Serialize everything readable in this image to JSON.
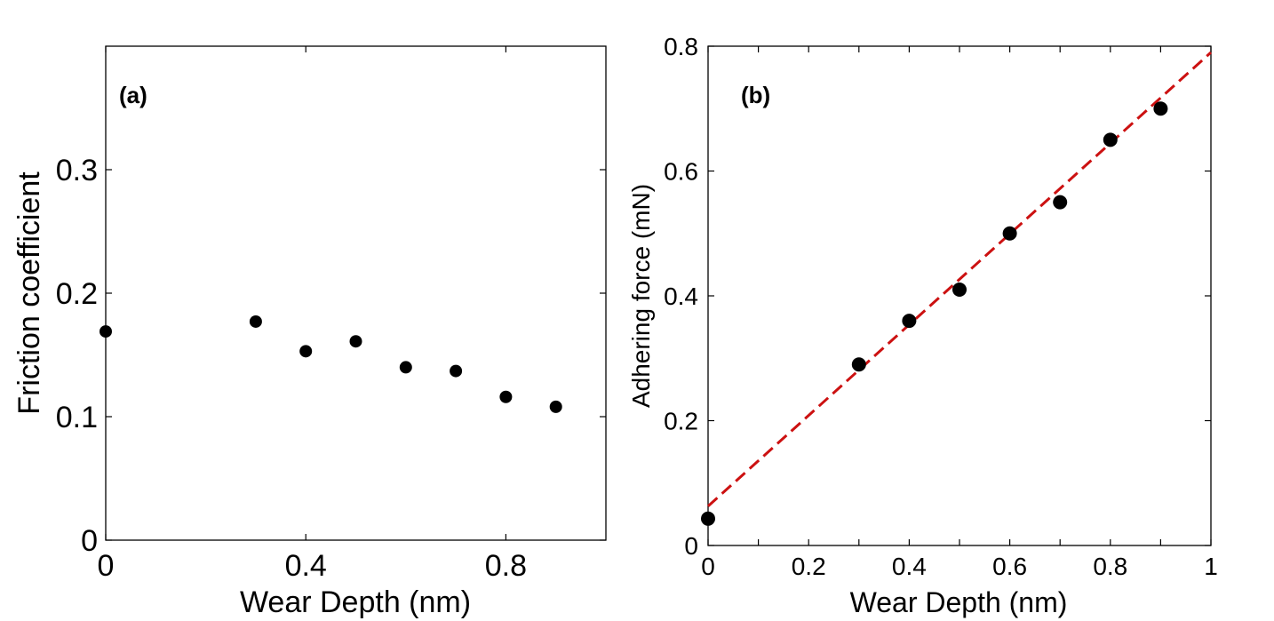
{
  "chart_data": [
    {
      "panel": "(a)",
      "type": "scatter",
      "title": "",
      "xlabel": "Wear Depth (nm)",
      "ylabel": "Friction coefficient",
      "xlim": [
        0,
        1
      ],
      "ylim": [
        0,
        0.4
      ],
      "xticks": [
        0,
        0.4,
        0.8
      ],
      "xtick_labels": [
        "0",
        "0.4",
        "0.8"
      ],
      "yticks": [
        0,
        0.1,
        0.2,
        0.3
      ],
      "ytick_labels": [
        "0",
        "0.1",
        "0.2",
        "0.3"
      ],
      "grid": false,
      "marker_color": "#000000",
      "series": [
        {
          "name": "Friction coefficient",
          "points": [
            {
              "x": 0.0,
              "y": 0.169
            },
            {
              "x": 0.3,
              "y": 0.177
            },
            {
              "x": 0.4,
              "y": 0.153
            },
            {
              "x": 0.5,
              "y": 0.161
            },
            {
              "x": 0.6,
              "y": 0.14
            },
            {
              "x": 0.7,
              "y": 0.137
            },
            {
              "x": 0.8,
              "y": 0.116
            },
            {
              "x": 0.9,
              "y": 0.108
            }
          ]
        }
      ]
    },
    {
      "panel": "(b)",
      "type": "scatter",
      "title": "",
      "xlabel": "Wear Depth (nm)",
      "ylabel": "Adhering force (mN)",
      "xlim": [
        0,
        1
      ],
      "ylim": [
        0,
        0.8
      ],
      "xticks": [
        0,
        0.1,
        0.2,
        0.3,
        0.4,
        0.5,
        0.6,
        0.7,
        0.8,
        0.9,
        1
      ],
      "xtick_labels": [
        "0",
        "",
        "0.2",
        "",
        "0.4",
        "",
        "0.6",
        "",
        "0.8",
        "",
        "1"
      ],
      "yticks": [
        0,
        0.2,
        0.4,
        0.6,
        0.8
      ],
      "ytick_labels": [
        "0",
        "0.2",
        "0.4",
        "0.6",
        "0.8"
      ],
      "grid": false,
      "marker_color": "#000000",
      "fit_color": "#cc1111",
      "series": [
        {
          "name": "Adhering force",
          "points": [
            {
              "x": 0.0,
              "y": 0.043
            },
            {
              "x": 0.3,
              "y": 0.29
            },
            {
              "x": 0.4,
              "y": 0.36
            },
            {
              "x": 0.5,
              "y": 0.41
            },
            {
              "x": 0.6,
              "y": 0.5
            },
            {
              "x": 0.7,
              "y": 0.55
            },
            {
              "x": 0.8,
              "y": 0.65
            },
            {
              "x": 0.9,
              "y": 0.7
            }
          ]
        }
      ],
      "fit_line": {
        "style": "dashed",
        "x0": 0,
        "y0": 0.063,
        "x1": 1,
        "y1": 0.79
      }
    }
  ]
}
